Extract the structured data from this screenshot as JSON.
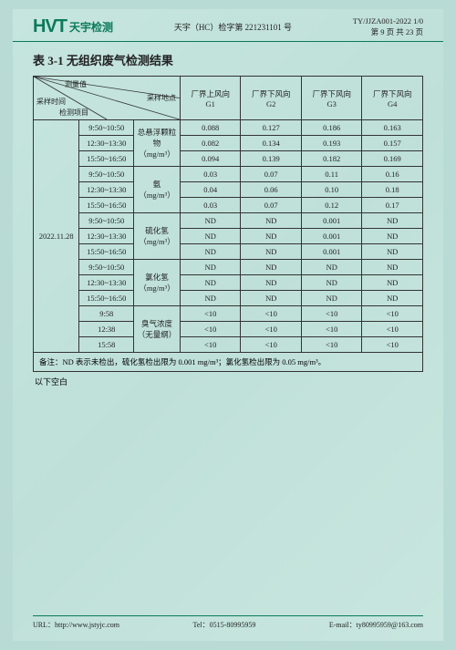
{
  "header": {
    "logo_main": "HVT",
    "logo_sub": "天宇检测",
    "center": "天宇（HC）检字第 221231101 号",
    "right1": "TY/JJZA001-2022 1/0",
    "right2": "第 9 页 共 23 页"
  },
  "title": "表 3-1 无组织废气检测结果",
  "diag": {
    "t1": "测量值",
    "t2": "采样地点",
    "t3": "采样时间",
    "t4": "检测项目"
  },
  "cols": [
    {
      "l1": "厂界上风向",
      "l2": "G1"
    },
    {
      "l1": "厂界下风向",
      "l2": "G2"
    },
    {
      "l1": "厂界下风向",
      "l2": "G3"
    },
    {
      "l1": "厂界下风向",
      "l2": "G4"
    }
  ],
  "date": "2022.11.28",
  "groups": [
    {
      "param": "总悬浮颗粒物",
      "unit": "（mg/m³）",
      "rows": [
        {
          "t": "9:50~10:50",
          "v": [
            "0.088",
            "0.127",
            "0.186",
            "0.163"
          ]
        },
        {
          "t": "12:30~13:30",
          "v": [
            "0.082",
            "0.134",
            "0.193",
            "0.157"
          ]
        },
        {
          "t": "15:50~16:50",
          "v": [
            "0.094",
            "0.139",
            "0.182",
            "0.169"
          ]
        }
      ]
    },
    {
      "param": "氨",
      "unit": "（mg/m³）",
      "rows": [
        {
          "t": "9:50~10:50",
          "v": [
            "0.03",
            "0.07",
            "0.11",
            "0.16"
          ]
        },
        {
          "t": "12:30~13:30",
          "v": [
            "0.04",
            "0.06",
            "0.10",
            "0.18"
          ]
        },
        {
          "t": "15:50~16:50",
          "v": [
            "0.03",
            "0.07",
            "0.12",
            "0.17"
          ]
        }
      ]
    },
    {
      "param": "硫化氢",
      "unit": "（mg/m³）",
      "rows": [
        {
          "t": "9:50~10:50",
          "v": [
            "ND",
            "ND",
            "0.001",
            "ND"
          ]
        },
        {
          "t": "12:30~13:30",
          "v": [
            "ND",
            "ND",
            "0.001",
            "ND"
          ]
        },
        {
          "t": "15:50~16:50",
          "v": [
            "ND",
            "ND",
            "0.001",
            "ND"
          ]
        }
      ]
    },
    {
      "param": "氯化氢",
      "unit": "（mg/m³）",
      "rows": [
        {
          "t": "9:50~10:50",
          "v": [
            "ND",
            "ND",
            "ND",
            "ND"
          ]
        },
        {
          "t": "12:30~13:30",
          "v": [
            "ND",
            "ND",
            "ND",
            "ND"
          ]
        },
        {
          "t": "15:50~16:50",
          "v": [
            "ND",
            "ND",
            "ND",
            "ND"
          ]
        }
      ]
    },
    {
      "param": "臭气浓度",
      "unit": "（无量纲）",
      "rows": [
        {
          "t": "9:58",
          "v": [
            "<10",
            "<10",
            "<10",
            "<10"
          ]
        },
        {
          "t": "12:38",
          "v": [
            "<10",
            "<10",
            "<10",
            "<10"
          ]
        },
        {
          "t": "15:58",
          "v": [
            "<10",
            "<10",
            "<10",
            "<10"
          ]
        }
      ]
    }
  ],
  "note": "备注：ND 表示未检出，硫化氢检出限为 0.001 mg/m³；氯化氢检出限为 0.05 mg/m³。",
  "blank": "以下空白",
  "footer": {
    "url_label": "URL：",
    "url": "http://www.jstyjc.com",
    "tel_label": "Tel：",
    "tel": "0515-80995959",
    "email_label": "E-mail：",
    "email": "ty80995959@163.com"
  }
}
